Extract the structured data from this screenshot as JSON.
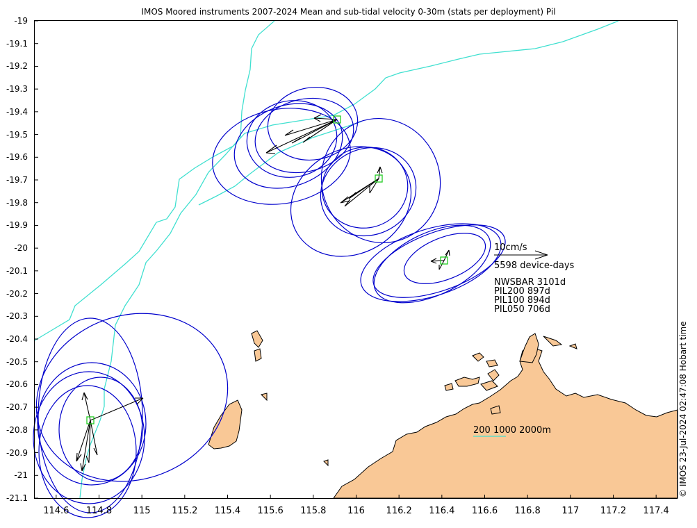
{
  "title": "IMOS Moored instruments 2007-2024 Mean and sub-tidal velocity 0-30m (stats per deployment) Pil",
  "chart_data": {
    "type": "map",
    "xlim": [
      114.5,
      117.5
    ],
    "ylim": [
      -21.1,
      -19
    ],
    "xticks": [
      "114.6",
      "114.8",
      "115",
      "115.2",
      "115.4",
      "115.6",
      "115.8",
      "116",
      "116.2",
      "116.4",
      "116.6",
      "116.8",
      "117",
      "117.2",
      "117.4"
    ],
    "yticks": [
      "-19",
      "-19.1",
      "-19.2",
      "-19.3",
      "-19.4",
      "-19.5",
      "-19.6",
      "-19.7",
      "-19.8",
      "-19.9",
      "-20",
      "-20.1",
      "-20.2",
      "-20.3",
      "-20.4",
      "-20.5",
      "-20.6",
      "-20.7",
      "-20.8",
      "-20.9",
      "-21",
      "-21.1"
    ],
    "moorings": [
      {
        "name": "NWSBAR",
        "lon": 115.91,
        "lat": -19.43,
        "days": "3101d"
      },
      {
        "name": "PIL200",
        "lon": 116.11,
        "lat": -19.69,
        "days": "897d"
      },
      {
        "name": "PIL100",
        "lon": 116.42,
        "lat": -20.05,
        "days": "894d"
      },
      {
        "name": "PIL050",
        "lon": 114.76,
        "lat": -20.76,
        "days": "706d"
      }
    ],
    "scale_label": "10cm/s",
    "total_label": "5598 device-days",
    "isobath_label": "200 1000 2000m",
    "colors": {
      "land": "#f9c896",
      "ellipse": "#0000cc",
      "isobath": "#40e0d0",
      "mooring": "#22cc22",
      "arrow": "#000000"
    }
  },
  "credit": "© IMOS 23-Jul-2024 02:47:08 Hobart time"
}
